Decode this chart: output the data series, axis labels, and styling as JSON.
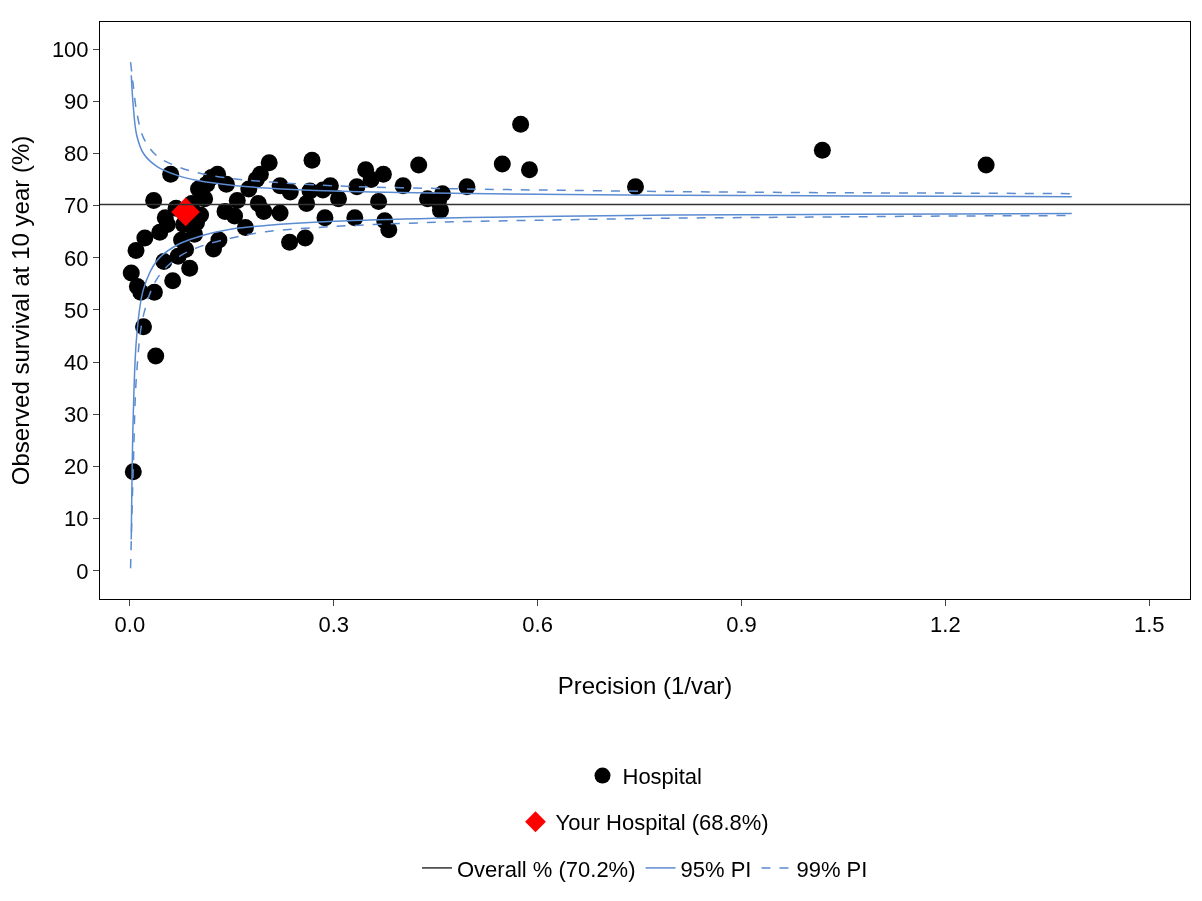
{
  "chart_data": {
    "type": "scatter",
    "xlabel": "Precision (1/var)",
    "ylabel": "Observed survival at 10 year (%)",
    "xlim": [
      -0.044,
      1.56
    ],
    "ylim": [
      -5.4,
      105.2
    ],
    "xticks": [
      {
        "value": 0,
        "label": "0.0"
      },
      {
        "value": 0.3,
        "label": "0.3"
      },
      {
        "value": 0.6,
        "label": "0.6"
      },
      {
        "value": 0.9,
        "label": "0.9"
      },
      {
        "value": 1.2,
        "label": "1.2"
      },
      {
        "value": 1.5,
        "label": "1.5"
      }
    ],
    "yticks": [
      0,
      10,
      20,
      30,
      40,
      50,
      60,
      70,
      80,
      90,
      100
    ],
    "legend": "bottom",
    "ref_lines": [
      {
        "axis": "y",
        "value": 70.2,
        "label": "Overall % (70.2%)",
        "color": "#333333",
        "line_style": "solid"
      }
    ],
    "series": [
      {
        "type": "line",
        "name": "95% PI",
        "color": "#5b8bd0",
        "line_style": "solid",
        "marker": "none",
        "x": [
          0.002,
          0.005,
          0.01,
          0.02,
          0.04,
          0.07,
          0.1,
          0.15,
          0.2,
          0.3,
          0.45,
          0.6,
          0.8,
          1.0,
          1.2,
          1.386
        ],
        "values": [
          95,
          89,
          83.5,
          80,
          77.5,
          75.8,
          74.8,
          73.9,
          73.4,
          72.8,
          72.4,
          72.2,
          72.0,
          71.9,
          71.8,
          71.7
        ]
      },
      {
        "type": "line",
        "color": "#5b8bd0",
        "line_style": "solid",
        "marker": "none",
        "x": [
          0.002,
          0.005,
          0.01,
          0.02,
          0.04,
          0.07,
          0.1,
          0.15,
          0.2,
          0.3,
          0.45,
          0.6,
          0.8,
          1.0,
          1.2,
          1.386
        ],
        "values": [
          6,
          30,
          45,
          54,
          59.5,
          62.5,
          64,
          65.5,
          66.2,
          67,
          67.6,
          67.9,
          68.2,
          68.3,
          68.4,
          68.5
        ]
      },
      {
        "type": "line",
        "name": "99% PI",
        "color": "#5b8bd0",
        "line_style": "dashed",
        "marker": "none",
        "x": [
          0.001,
          0.005,
          0.01,
          0.02,
          0.04,
          0.07,
          0.1,
          0.15,
          0.2,
          0.3,
          0.45,
          0.6,
          0.8,
          1.0,
          1.2,
          1.386
        ],
        "values": [
          97.5,
          93,
          88,
          83,
          79.5,
          77.5,
          76.3,
          75.2,
          74.6,
          73.8,
          73.3,
          73,
          72.7,
          72.5,
          72.4,
          72.3
        ]
      },
      {
        "type": "line",
        "color": "#5b8bd0",
        "line_style": "dashed",
        "marker": "none",
        "x": [
          0.001,
          0.005,
          0.01,
          0.02,
          0.04,
          0.07,
          0.1,
          0.15,
          0.2,
          0.3,
          0.45,
          0.6,
          0.8,
          1.0,
          1.2,
          1.386
        ],
        "values": [
          0.5,
          20,
          38,
          49,
          56,
          60,
          62,
          63.8,
          65,
          66,
          66.8,
          67.2,
          67.6,
          67.8,
          68,
          68.1
        ]
      },
      {
        "name": "Hospital",
        "color": "#000000",
        "marker": "circle",
        "x": [
          0.005,
          0.02,
          0.038,
          0.002,
          0.011,
          0.016,
          0.036,
          0.009,
          0.022,
          0.035,
          0.06,
          0.044,
          0.055,
          0.05,
          0.063,
          0.071,
          0.082,
          0.088,
          0.076,
          0.095,
          0.098,
          0.091,
          0.101,
          0.113,
          0.11,
          0.12,
          0.129,
          0.104,
          0.123,
          0.131,
          0.14,
          0.142,
          0.154,
          0.158,
          0.17,
          0.175,
          0.186,
          0.192,
          0.205,
          0.189,
          0.197,
          0.221,
          0.221,
          0.235,
          0.236,
          0.258,
          0.26,
          0.265,
          0.268,
          0.284,
          0.287,
          0.295,
          0.307,
          0.331,
          0.334,
          0.347,
          0.355,
          0.366,
          0.373,
          0.375,
          0.381,
          0.402,
          0.425,
          0.438,
          0.454,
          0.457,
          0.46,
          0.496,
          0.548,
          0.575,
          0.588,
          0.744,
          1.019,
          1.26,
          0.068,
          0.052,
          0.079
        ],
        "values": [
          19.0,
          46.8,
          41.2,
          57.1,
          54.5,
          53.4,
          53.4,
          61.4,
          63.8,
          71.0,
          76.0,
          64.9,
          66.4,
          59.3,
          55.6,
          60.3,
          61.6,
          58.0,
          63.4,
          64.5,
          66.7,
          70.4,
          73.2,
          74.1,
          71.3,
          75.4,
          76.0,
          68.2,
          61.7,
          63.4,
          68.9,
          74.1,
          68.0,
          71.0,
          65.8,
          73.2,
          75.0,
          76.0,
          78.2,
          70.4,
          68.9,
          73.8,
          68.6,
          63.0,
          72.6,
          63.8,
          70.4,
          72.8,
          78.7,
          73.0,
          67.7,
          73.8,
          71.3,
          67.7,
          73.6,
          76.9,
          75.0,
          70.8,
          76.0,
          67.1,
          65.4,
          73.8,
          77.8,
          71.3,
          70.8,
          69.1,
          72.3,
          73.6,
          78.0,
          85.6,
          76.9,
          73.6,
          80.6,
          77.8,
          69.5,
          67.7,
          66.4
        ]
      },
      {
        "name": "Your Hospital (68.8%)",
        "color": "#ff0000",
        "marker": "diamond",
        "x": [
          0.082
        ],
        "values": [
          68.8
        ]
      }
    ]
  }
}
